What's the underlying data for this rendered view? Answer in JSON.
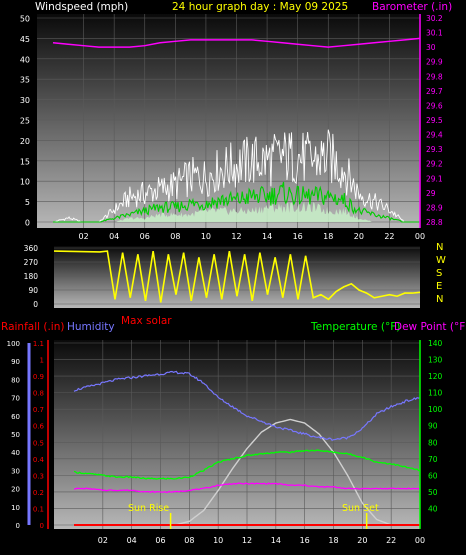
{
  "header": {
    "wind_label": "Windspeed (mph)",
    "title": "24 hour graph day : May 09 2025",
    "baro_label": "Barometer (.in)"
  },
  "bottom_header": {
    "rain_label": "Rainfall (.in)",
    "humidity_label": "Humidity",
    "temp_label": "Temperature (°F)",
    "dew_label": "Dew Point (°F)"
  },
  "colors": {
    "wind_label": "#ffffff",
    "title": "#ffff00",
    "baro": "#ff00ff",
    "direction": "#ffff00",
    "max_solar": "#ff0000",
    "rain": "#ff0000",
    "humidity": "#7777ff",
    "temperature": "#00ff00",
    "dew": "#ff00ff",
    "solar": "#d0d0d0",
    "sun_marker": "#ffff00"
  },
  "compass": [
    "N",
    "W",
    "S",
    "E",
    "N"
  ],
  "max_solar_label": "Max solar",
  "sun_rise_label": "Sun Rise",
  "sun_set_label": "Sun Set",
  "chart_data": [
    {
      "type": "line",
      "name": "wind-and-barometer",
      "x_ticks": [
        "02",
        "04",
        "06",
        "08",
        "10",
        "12",
        "14",
        "16",
        "18",
        "20",
        "22",
        "00"
      ],
      "ylim_left": [
        0,
        50
      ],
      "y_ticks_left": [
        "0",
        "5",
        "10",
        "15",
        "20",
        "25",
        "30",
        "35",
        "40",
        "45",
        "50"
      ],
      "ylim_right": [
        28.8,
        30.2
      ],
      "y_ticks_right": [
        "28.8",
        "28.9",
        "29",
        "29.1",
        "29.2",
        "29.3",
        "29.4",
        "29.5",
        "29.6",
        "29.7",
        "29.8",
        "29.9",
        "30",
        "30.1",
        "30.2"
      ],
      "grid": true,
      "x_hours": [
        0,
        1,
        2,
        3,
        4,
        5,
        6,
        7,
        8,
        9,
        10,
        11,
        12,
        13,
        14,
        15,
        16,
        17,
        18,
        19,
        20,
        21,
        22,
        23,
        24
      ],
      "barometer": [
        30.03,
        30.02,
        30.01,
        30.0,
        30.0,
        30.0,
        30.01,
        30.03,
        30.04,
        30.05,
        30.05,
        30.05,
        30.05,
        30.05,
        30.04,
        30.03,
        30.02,
        30.01,
        30.0,
        30.01,
        30.02,
        30.03,
        30.04,
        30.05,
        30.06
      ],
      "wind_gust": [
        0,
        1,
        0,
        0,
        3,
        6,
        7,
        8,
        9,
        11,
        11,
        13,
        14,
        15,
        15,
        16,
        16,
        15,
        16,
        13,
        7,
        5,
        3,
        0,
        0
      ],
      "wind_avg": [
        0,
        0,
        0,
        0,
        1,
        2,
        3,
        4,
        4,
        5,
        5,
        6,
        6,
        7,
        7,
        8,
        7,
        7,
        7,
        6,
        3,
        2,
        1,
        0,
        0
      ],
      "wind_low": [
        0,
        0,
        0,
        0,
        0,
        1,
        1,
        2,
        2,
        2,
        3,
        3,
        3,
        3,
        4,
        4,
        4,
        4,
        3,
        3,
        1,
        0,
        0,
        0,
        0
      ]
    },
    {
      "type": "line",
      "name": "wind-direction",
      "y_ticks": [
        "0",
        "90",
        "180",
        "270",
        "360"
      ],
      "ylim": [
        0,
        360
      ],
      "x_hours": [
        0,
        3,
        3.5,
        4,
        4.5,
        5,
        5.5,
        6,
        6.5,
        7,
        7.5,
        8,
        8.5,
        9,
        9.5,
        10,
        10.5,
        11,
        11.5,
        12,
        12.5,
        13,
        13.5,
        14,
        14.5,
        15,
        15.5,
        16,
        16.5,
        17,
        17.5,
        18,
        18.5,
        19,
        19.5,
        20,
        20.5,
        21,
        21.5,
        22,
        22.5,
        23,
        23.5,
        24
      ],
      "direction": [
        340,
        335,
        340,
        30,
        330,
        40,
        320,
        20,
        340,
        10,
        320,
        60,
        330,
        20,
        300,
        40,
        320,
        30,
        340,
        50,
        320,
        20,
        330,
        60,
        300,
        40,
        320,
        30,
        310,
        40,
        60,
        30,
        80,
        110,
        130,
        90,
        70,
        40,
        50,
        60,
        50,
        70,
        70,
        75
      ]
    },
    {
      "type": "line",
      "name": "temperature-humidity-rain",
      "x_ticks": [
        "02",
        "04",
        "06",
        "08",
        "10",
        "12",
        "14",
        "16",
        "18",
        "20",
        "22",
        "00"
      ],
      "ylim_humidity": [
        0,
        100
      ],
      "y_ticks_humidity": [
        "0",
        "10",
        "20",
        "30",
        "40",
        "50",
        "60",
        "70",
        "80",
        "90",
        "100"
      ],
      "ylim_rain": [
        0,
        1.1
      ],
      "y_ticks_rain": [
        "0",
        "0.1",
        "0.2",
        "0.3",
        "0.4",
        "0.5",
        "0.6",
        "0.7",
        "0.8",
        "0.9",
        "1",
        "1.1"
      ],
      "ylim_temp": [
        30,
        140
      ],
      "y_ticks_temp": [
        "40",
        "50",
        "60",
        "70",
        "80",
        "90",
        "100",
        "110",
        "120",
        "130",
        "140"
      ],
      "x_hours": [
        0,
        1,
        2,
        3,
        4,
        5,
        6,
        7,
        8,
        9,
        10,
        11,
        12,
        13,
        14,
        15,
        16,
        17,
        18,
        19,
        20,
        21,
        22,
        23,
        24
      ],
      "humidity": [
        74,
        76,
        78,
        80,
        81,
        82,
        83,
        84,
        83,
        78,
        70,
        65,
        60,
        57,
        54,
        52,
        50,
        48,
        47,
        48,
        53,
        61,
        65,
        68,
        70
      ],
      "temperature": [
        62,
        61,
        60,
        59,
        59,
        58,
        58,
        58,
        59,
        63,
        68,
        70,
        72,
        73,
        74,
        74,
        75,
        75,
        74,
        73,
        71,
        68,
        67,
        65,
        63
      ],
      "dew_point": [
        52,
        52,
        51,
        51,
        51,
        50,
        50,
        50,
        51,
        52,
        54,
        55,
        55,
        55,
        55,
        54,
        54,
        53,
        53,
        52,
        52,
        52,
        52,
        52,
        52
      ],
      "solar": [
        0,
        0,
        0,
        0,
        0,
        0,
        0,
        0,
        2,
        8,
        19,
        31,
        42,
        51,
        56,
        58,
        56,
        50,
        40,
        27,
        12,
        3,
        0,
        0,
        0
      ],
      "rain": [
        0,
        0,
        0,
        0,
        0,
        0,
        0,
        0,
        0,
        0,
        0,
        0,
        0,
        0,
        0,
        0,
        0,
        0,
        0,
        0,
        0,
        0,
        0,
        0,
        0
      ],
      "sunrise_hour": 6.7,
      "sunset_hour": 20.3
    }
  ]
}
